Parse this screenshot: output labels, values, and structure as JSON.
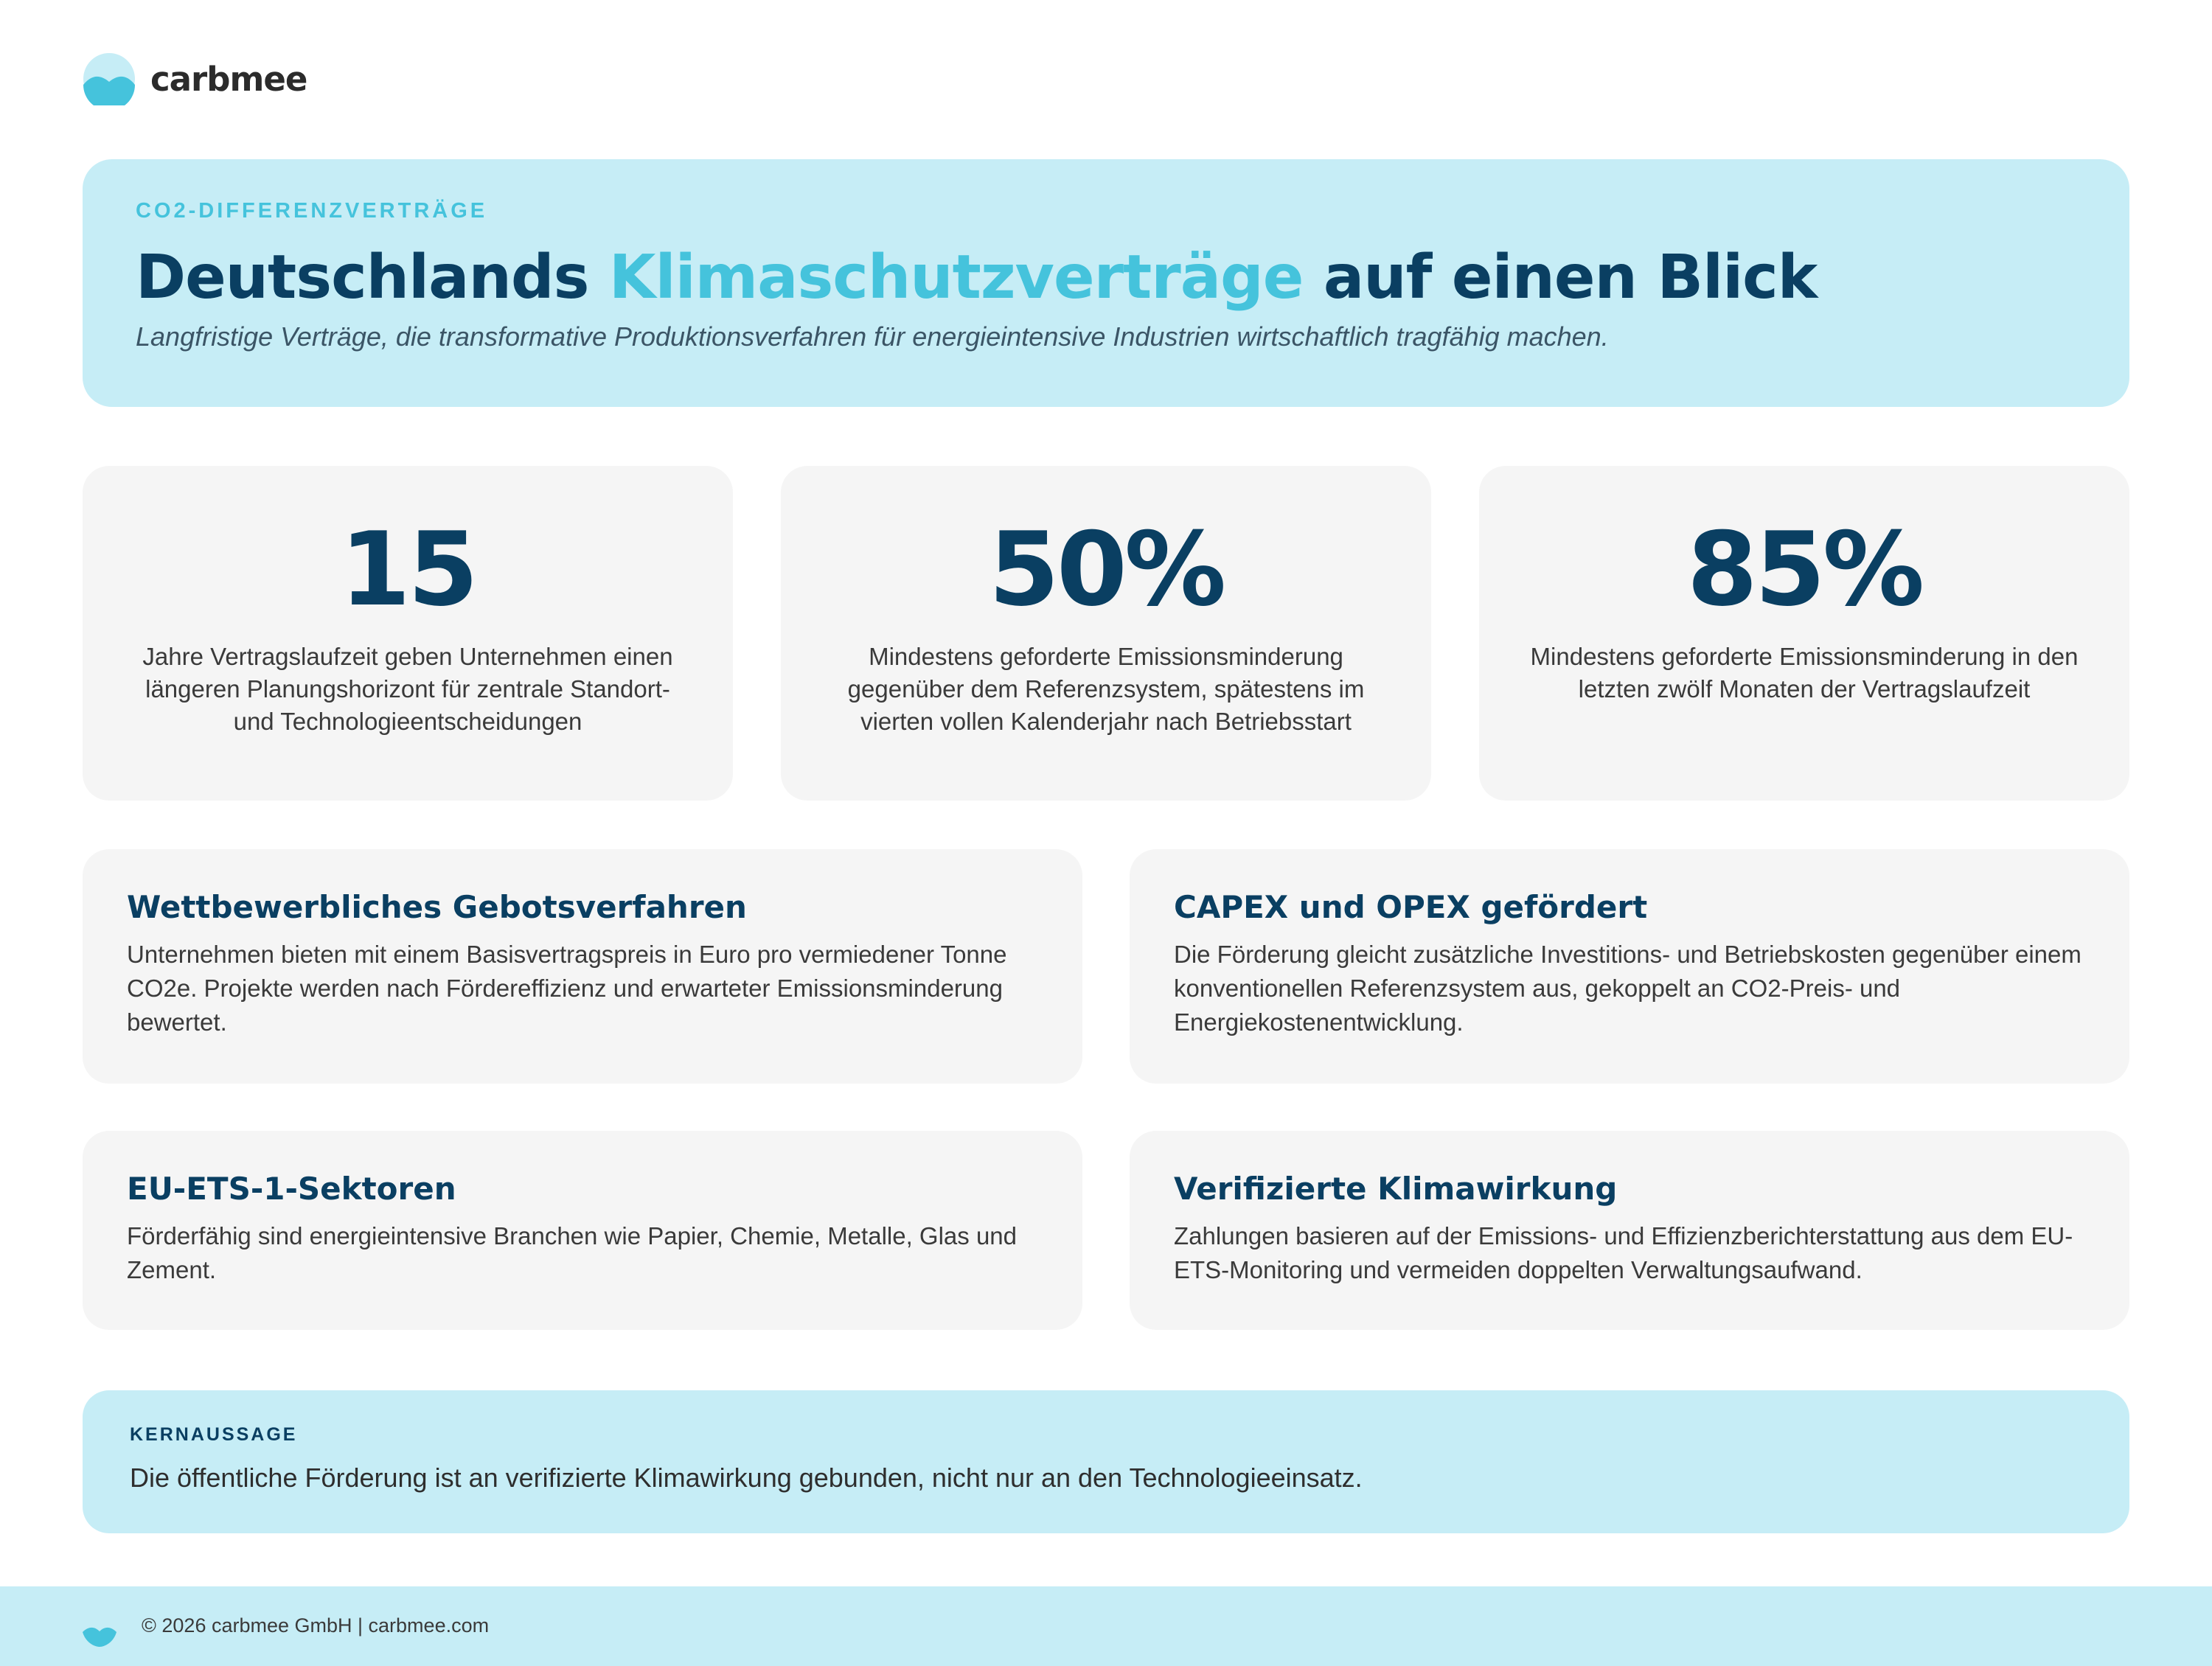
{
  "brand": {
    "name": "carbmee",
    "logo_icon": "carbmee-wave-logo-icon",
    "colors": {
      "navy": "#0a3f62",
      "accent": "#45c3dc",
      "light_blue": "#c6edf6",
      "card_gray": "#f5f5f5"
    }
  },
  "hero": {
    "eyebrow": "CO2-DIFFERENZVERTRÄGE",
    "title_part1": "Deutschlands ",
    "title_accent": "Klimaschutzverträge",
    "title_part2": " auf einen Blick",
    "subtitle": "Langfristige Verträge, die transformative Produktionsverfahren für energieintensive Industrien wirtschaftlich tragfähig machen."
  },
  "stats": [
    {
      "value": "15",
      "text": "Jahre Vertragslaufzeit geben Unternehmen einen längeren Planungshorizont für zentrale Standort- und Technologieentscheidungen"
    },
    {
      "value": "50%",
      "text": "Mindestens geforderte Emissionsminderung gegenüber dem Referenzsystem, spätestens im vierten vollen Kalenderjahr nach Betriebsstart"
    },
    {
      "value": "85%",
      "text": "Mindestens geforderte Emissionsminderung in den letzten zwölf Monaten der Vertragslaufzeit"
    }
  ],
  "features": [
    {
      "title": "Wettbewerbliches Gebotsverfahren",
      "text": "Unternehmen bieten mit einem Basisvertragspreis in Euro pro vermiedener Tonne CO2e. Projekte werden nach Fördereffizienz und erwarteter Emissionsminderung bewertet."
    },
    {
      "title": "CAPEX und OPEX gefördert",
      "text": "Die Förderung gleicht zusätzliche Investitions- und Betriebskosten gegenüber einem konventionellen Referenzsystem aus, gekoppelt an CO2-Preis- und Energiekostenentwicklung."
    },
    {
      "title": "EU-ETS-1-Sektoren",
      "text": "Förderfähig sind energieintensive Branchen wie Papier, Chemie, Metalle, Glas und Zement."
    },
    {
      "title": "Verifizierte Klimawirkung",
      "text": "Zahlungen basieren auf der Emissions- und Effizienzberichterstattung aus dem EU-ETS-Monitoring und vermeiden doppelten Verwaltungsaufwand."
    }
  ],
  "key_message": {
    "label": "KERNAUSSAGE",
    "text": "Die öffentliche Förderung ist an verifizierte Klimawirkung gebunden, nicht nur an den Technologieeinsatz."
  },
  "footer": {
    "icon": "carbmee-wave-icon",
    "text": "© 2026 carbmee GmbH | carbmee.com"
  }
}
